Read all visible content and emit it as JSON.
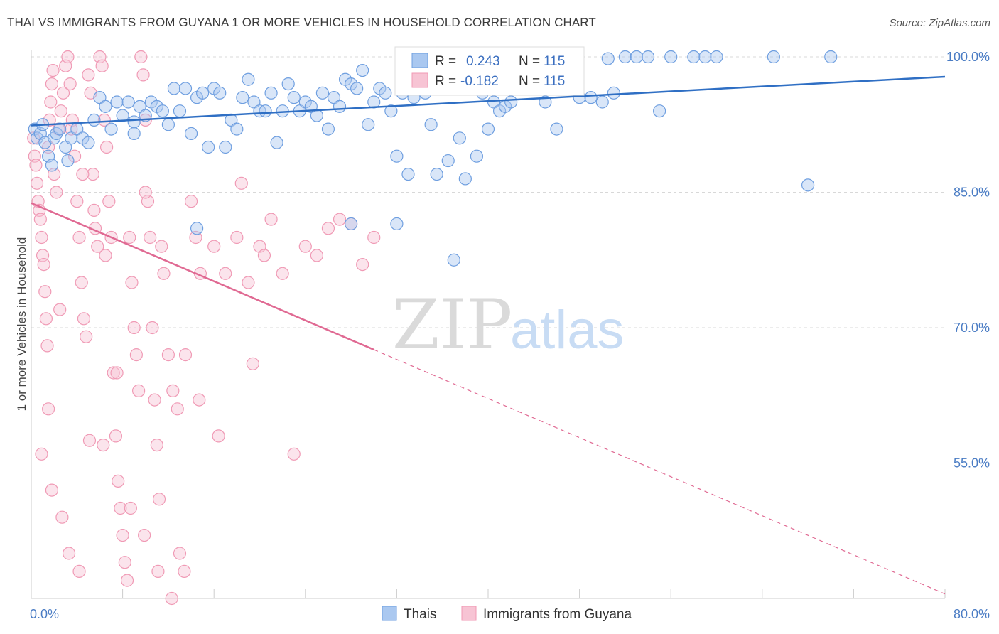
{
  "title": "THAI VS IMMIGRANTS FROM GUYANA 1 OR MORE VEHICLES IN HOUSEHOLD CORRELATION CHART",
  "source": "Source: ZipAtlas.com",
  "watermark": {
    "zip": "ZIP",
    "atlas": "atlas"
  },
  "colors": {
    "blue": "#6f9fe0",
    "blue_line": "#2f6fc4",
    "blue_fill": "#aac8f0",
    "pink": "#f09ab5",
    "pink_line": "#e06a93",
    "pink_fill": "#f7c4d4",
    "grid": "#d8d8d8",
    "tick_text": "#4a7cc4"
  },
  "legend_box": {
    "row1": {
      "r_label": "R =",
      "r_value": "0.243",
      "n_label": "N =",
      "n_value": "115"
    },
    "row2": {
      "r_label": "R =",
      "r_value": "-0.182",
      "n_label": "N =",
      "n_value": "115"
    }
  },
  "chart_data": {
    "type": "scatter",
    "title": "THAI VS IMMIGRANTS FROM GUYANA 1 OR MORE VEHICLES IN HOUSEHOLD CORRELATION CHART",
    "xlabel": "",
    "ylabel": "1 or more Vehicles in Household",
    "xlim": [
      0,
      80
    ],
    "ylim": [
      40,
      100
    ],
    "x_tick_labels": [
      "0.0%",
      "80.0%"
    ],
    "y_ticks": [
      55,
      70,
      85,
      100
    ],
    "y_tick_labels": [
      "55.0%",
      "70.0%",
      "85.0%",
      "100.0%"
    ],
    "grid": true,
    "legend_position": "bottom",
    "series": [
      {
        "name": "Thais",
        "color": "#6f9fe0",
        "r": 0.243,
        "n": 115,
        "trend": {
          "x": [
            0,
            80
          ],
          "y": [
            92.4,
            97.8
          ],
          "dashed_after": null
        },
        "points": [
          [
            0.3,
            92
          ],
          [
            0.5,
            91
          ],
          [
            0.8,
            91.5
          ],
          [
            1,
            92.5
          ],
          [
            1.2,
            90.5
          ],
          [
            1.5,
            89
          ],
          [
            1.8,
            88
          ],
          [
            2,
            91
          ],
          [
            2.2,
            91.5
          ],
          [
            2.5,
            92
          ],
          [
            3,
            90
          ],
          [
            3.2,
            88.5
          ],
          [
            3.5,
            91
          ],
          [
            4,
            92
          ],
          [
            4.5,
            91
          ],
          [
            5,
            90.5
          ],
          [
            5.5,
            93
          ],
          [
            6,
            95.5
          ],
          [
            6.5,
            94.5
          ],
          [
            7,
            92
          ],
          [
            7.5,
            95
          ],
          [
            8,
            93.5
          ],
          [
            8.5,
            95
          ],
          [
            9,
            91.5
          ],
          [
            9.5,
            94.5
          ],
          [
            10,
            93.5
          ],
          [
            10.5,
            95
          ],
          [
            11,
            94.5
          ],
          [
            11.5,
            94
          ],
          [
            12,
            92.5
          ],
          [
            12.5,
            96.5
          ],
          [
            13,
            94
          ],
          [
            13.5,
            96.5
          ],
          [
            14,
            91.5
          ],
          [
            14.5,
            95.5
          ],
          [
            15,
            96
          ],
          [
            15.5,
            90
          ],
          [
            16,
            96.5
          ],
          [
            16.5,
            96
          ],
          [
            17,
            90
          ],
          [
            17.5,
            93
          ],
          [
            18,
            92
          ],
          [
            18.5,
            95.5
          ],
          [
            19,
            97.5
          ],
          [
            19.5,
            95
          ],
          [
            20,
            94
          ],
          [
            20.5,
            94
          ],
          [
            21,
            96
          ],
          [
            21.5,
            90.5
          ],
          [
            22,
            94
          ],
          [
            22.5,
            97
          ],
          [
            23,
            95.5
          ],
          [
            23.5,
            94
          ],
          [
            24,
            95
          ],
          [
            24.5,
            94.5
          ],
          [
            25,
            93.5
          ],
          [
            25.5,
            96
          ],
          [
            26,
            92
          ],
          [
            26.5,
            95.5
          ],
          [
            27,
            94.5
          ],
          [
            27.5,
            97.5
          ],
          [
            28,
            97
          ],
          [
            28.5,
            96.5
          ],
          [
            29,
            98.5
          ],
          [
            29.5,
            92.5
          ],
          [
            30,
            95
          ],
          [
            30.5,
            96.5
          ],
          [
            31,
            96
          ],
          [
            31.5,
            94
          ],
          [
            32,
            89
          ],
          [
            32.5,
            96
          ],
          [
            33,
            87
          ],
          [
            33.5,
            95.5
          ],
          [
            34,
            98
          ],
          [
            34.5,
            96
          ],
          [
            35,
            92.5
          ],
          [
            35.5,
            87
          ],
          [
            36,
            98.5
          ],
          [
            36.5,
            88.5
          ],
          [
            37,
            97
          ],
          [
            37.5,
            91
          ],
          [
            38,
            86.5
          ],
          [
            38.5,
            98
          ],
          [
            39,
            89
          ],
          [
            39.5,
            96
          ],
          [
            40,
            92
          ],
          [
            40.5,
            95
          ],
          [
            41,
            94
          ],
          [
            41.5,
            94.5
          ],
          [
            42,
            95
          ],
          [
            44,
            97
          ],
          [
            45,
            95
          ],
          [
            46,
            92
          ],
          [
            47,
            100
          ],
          [
            48,
            95.5
          ],
          [
            49,
            95.5
          ],
          [
            50,
            95
          ],
          [
            50.5,
            99.8
          ],
          [
            51,
            96
          ],
          [
            52,
            100
          ],
          [
            53,
            100
          ],
          [
            54,
            100
          ],
          [
            55,
            94
          ],
          [
            56,
            100
          ],
          [
            58,
            100
          ],
          [
            59,
            100
          ],
          [
            60,
            100
          ],
          [
            65,
            100
          ],
          [
            68,
            85.8
          ],
          [
            70,
            100
          ],
          [
            14.5,
            81
          ],
          [
            28,
            81.5
          ],
          [
            32,
            81.5
          ],
          [
            37,
            77.5
          ],
          [
            9,
            92.8
          ]
        ]
      },
      {
        "name": "Immigrants from Guyana",
        "color": "#f09ab5",
        "r": -0.182,
        "n": 115,
        "trend": {
          "x": [
            0,
            80
          ],
          "y": [
            83.8,
            40.5
          ],
          "solid_until_x": 30
        },
        "points": [
          [
            0.2,
            91
          ],
          [
            0.3,
            89
          ],
          [
            0.4,
            88
          ],
          [
            0.5,
            86
          ],
          [
            0.6,
            84
          ],
          [
            0.7,
            83
          ],
          [
            0.8,
            82
          ],
          [
            0.9,
            80
          ],
          [
            1,
            78
          ],
          [
            1.1,
            77
          ],
          [
            1.2,
            74
          ],
          [
            1.3,
            71
          ],
          [
            1.4,
            68
          ],
          [
            1.5,
            90
          ],
          [
            1.6,
            93
          ],
          [
            1.7,
            95
          ],
          [
            1.8,
            97
          ],
          [
            1.9,
            98.5
          ],
          [
            2,
            87
          ],
          [
            2.2,
            85
          ],
          [
            2.4,
            92
          ],
          [
            2.6,
            94
          ],
          [
            2.8,
            96
          ],
          [
            3,
            99
          ],
          [
            3.2,
            100
          ],
          [
            3.4,
            97
          ],
          [
            3.6,
            93
          ],
          [
            3.8,
            89
          ],
          [
            4,
            84
          ],
          [
            4.2,
            80
          ],
          [
            4.4,
            75
          ],
          [
            4.6,
            71
          ],
          [
            4.8,
            69
          ],
          [
            5,
            98
          ],
          [
            5.2,
            96
          ],
          [
            5.4,
            87
          ],
          [
            5.6,
            81
          ],
          [
            5.8,
            79
          ],
          [
            6,
            100
          ],
          [
            6.2,
            99
          ],
          [
            6.4,
            93
          ],
          [
            6.6,
            90
          ],
          [
            6.8,
            84
          ],
          [
            7,
            80
          ],
          [
            7.2,
            65
          ],
          [
            7.4,
            58
          ],
          [
            7.6,
            53
          ],
          [
            7.8,
            50
          ],
          [
            8,
            47
          ],
          [
            8.2,
            44
          ],
          [
            8.4,
            42
          ],
          [
            8.6,
            80
          ],
          [
            8.8,
            75
          ],
          [
            9,
            70
          ],
          [
            9.2,
            67
          ],
          [
            9.4,
            63
          ],
          [
            9.6,
            100
          ],
          [
            9.8,
            98
          ],
          [
            10,
            93
          ],
          [
            10.2,
            84
          ],
          [
            10.4,
            80
          ],
          [
            10.6,
            70
          ],
          [
            10.8,
            62
          ],
          [
            11,
            57
          ],
          [
            11.2,
            51
          ],
          [
            11.4,
            79
          ],
          [
            11.6,
            76
          ],
          [
            12,
            67
          ],
          [
            12.4,
            63
          ],
          [
            12.8,
            61
          ],
          [
            13,
            45
          ],
          [
            13.4,
            43
          ],
          [
            14,
            84
          ],
          [
            14.4,
            80
          ],
          [
            14.8,
            76
          ],
          [
            16,
            79
          ],
          [
            16.4,
            58
          ],
          [
            17,
            76
          ],
          [
            18,
            80
          ],
          [
            18.4,
            86
          ],
          [
            19,
            75
          ],
          [
            19.4,
            66
          ],
          [
            20,
            79
          ],
          [
            20.4,
            78
          ],
          [
            21,
            82
          ],
          [
            22,
            76
          ],
          [
            23,
            56
          ],
          [
            24,
            79
          ],
          [
            25,
            78
          ],
          [
            26,
            81
          ],
          [
            27,
            82
          ],
          [
            28,
            81.5
          ],
          [
            29,
            77
          ],
          [
            30,
            80
          ],
          [
            3.5,
            92
          ],
          [
            4.5,
            87
          ],
          [
            5.5,
            83
          ],
          [
            6.5,
            78
          ],
          [
            2.5,
            72
          ],
          [
            1.5,
            61
          ],
          [
            0.9,
            56
          ],
          [
            1.8,
            52
          ],
          [
            2.7,
            49
          ],
          [
            3.3,
            45
          ],
          [
            4.2,
            43
          ],
          [
            5.1,
            57.5
          ],
          [
            6.3,
            57
          ],
          [
            7.5,
            65
          ],
          [
            8.7,
            50
          ],
          [
            9.9,
            47
          ],
          [
            11.1,
            43
          ],
          [
            12.3,
            40
          ],
          [
            13.5,
            67
          ],
          [
            14.7,
            62
          ],
          [
            10,
            85
          ]
        ]
      }
    ]
  },
  "legend": {
    "items": [
      {
        "label": "Thais",
        "color": "#6f9fe0"
      },
      {
        "label": "Immigrants from Guyana",
        "color": "#f09ab5"
      }
    ]
  }
}
